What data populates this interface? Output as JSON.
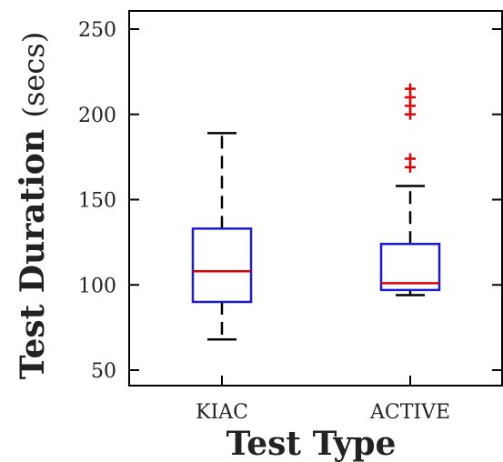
{
  "chart_data": {
    "type": "box",
    "title": "",
    "xlabel": "Test Type",
    "ylabel_main": "Test Duration",
    "ylabel_unit": "(secs)",
    "categories": [
      "KIAC",
      "ACTIVE"
    ],
    "ylim": [
      40,
      260
    ],
    "yticks": [
      50,
      100,
      150,
      200,
      250
    ],
    "boxes": [
      {
        "category": "KIAC",
        "whisker_low": 68,
        "q1": 90,
        "median": 108,
        "q3": 133,
        "whisker_high": 189,
        "outliers": []
      },
      {
        "category": "ACTIVE",
        "whisker_low": 94,
        "q1": 97,
        "median": 101,
        "q3": 124,
        "whisker_high": 158,
        "outliers": [
          169,
          174,
          200,
          205,
          210,
          215
        ]
      }
    ],
    "colors": {
      "box": "#1a1adc",
      "median": "#e00000",
      "whisker": "#000000",
      "outlier": "#e00000"
    }
  }
}
